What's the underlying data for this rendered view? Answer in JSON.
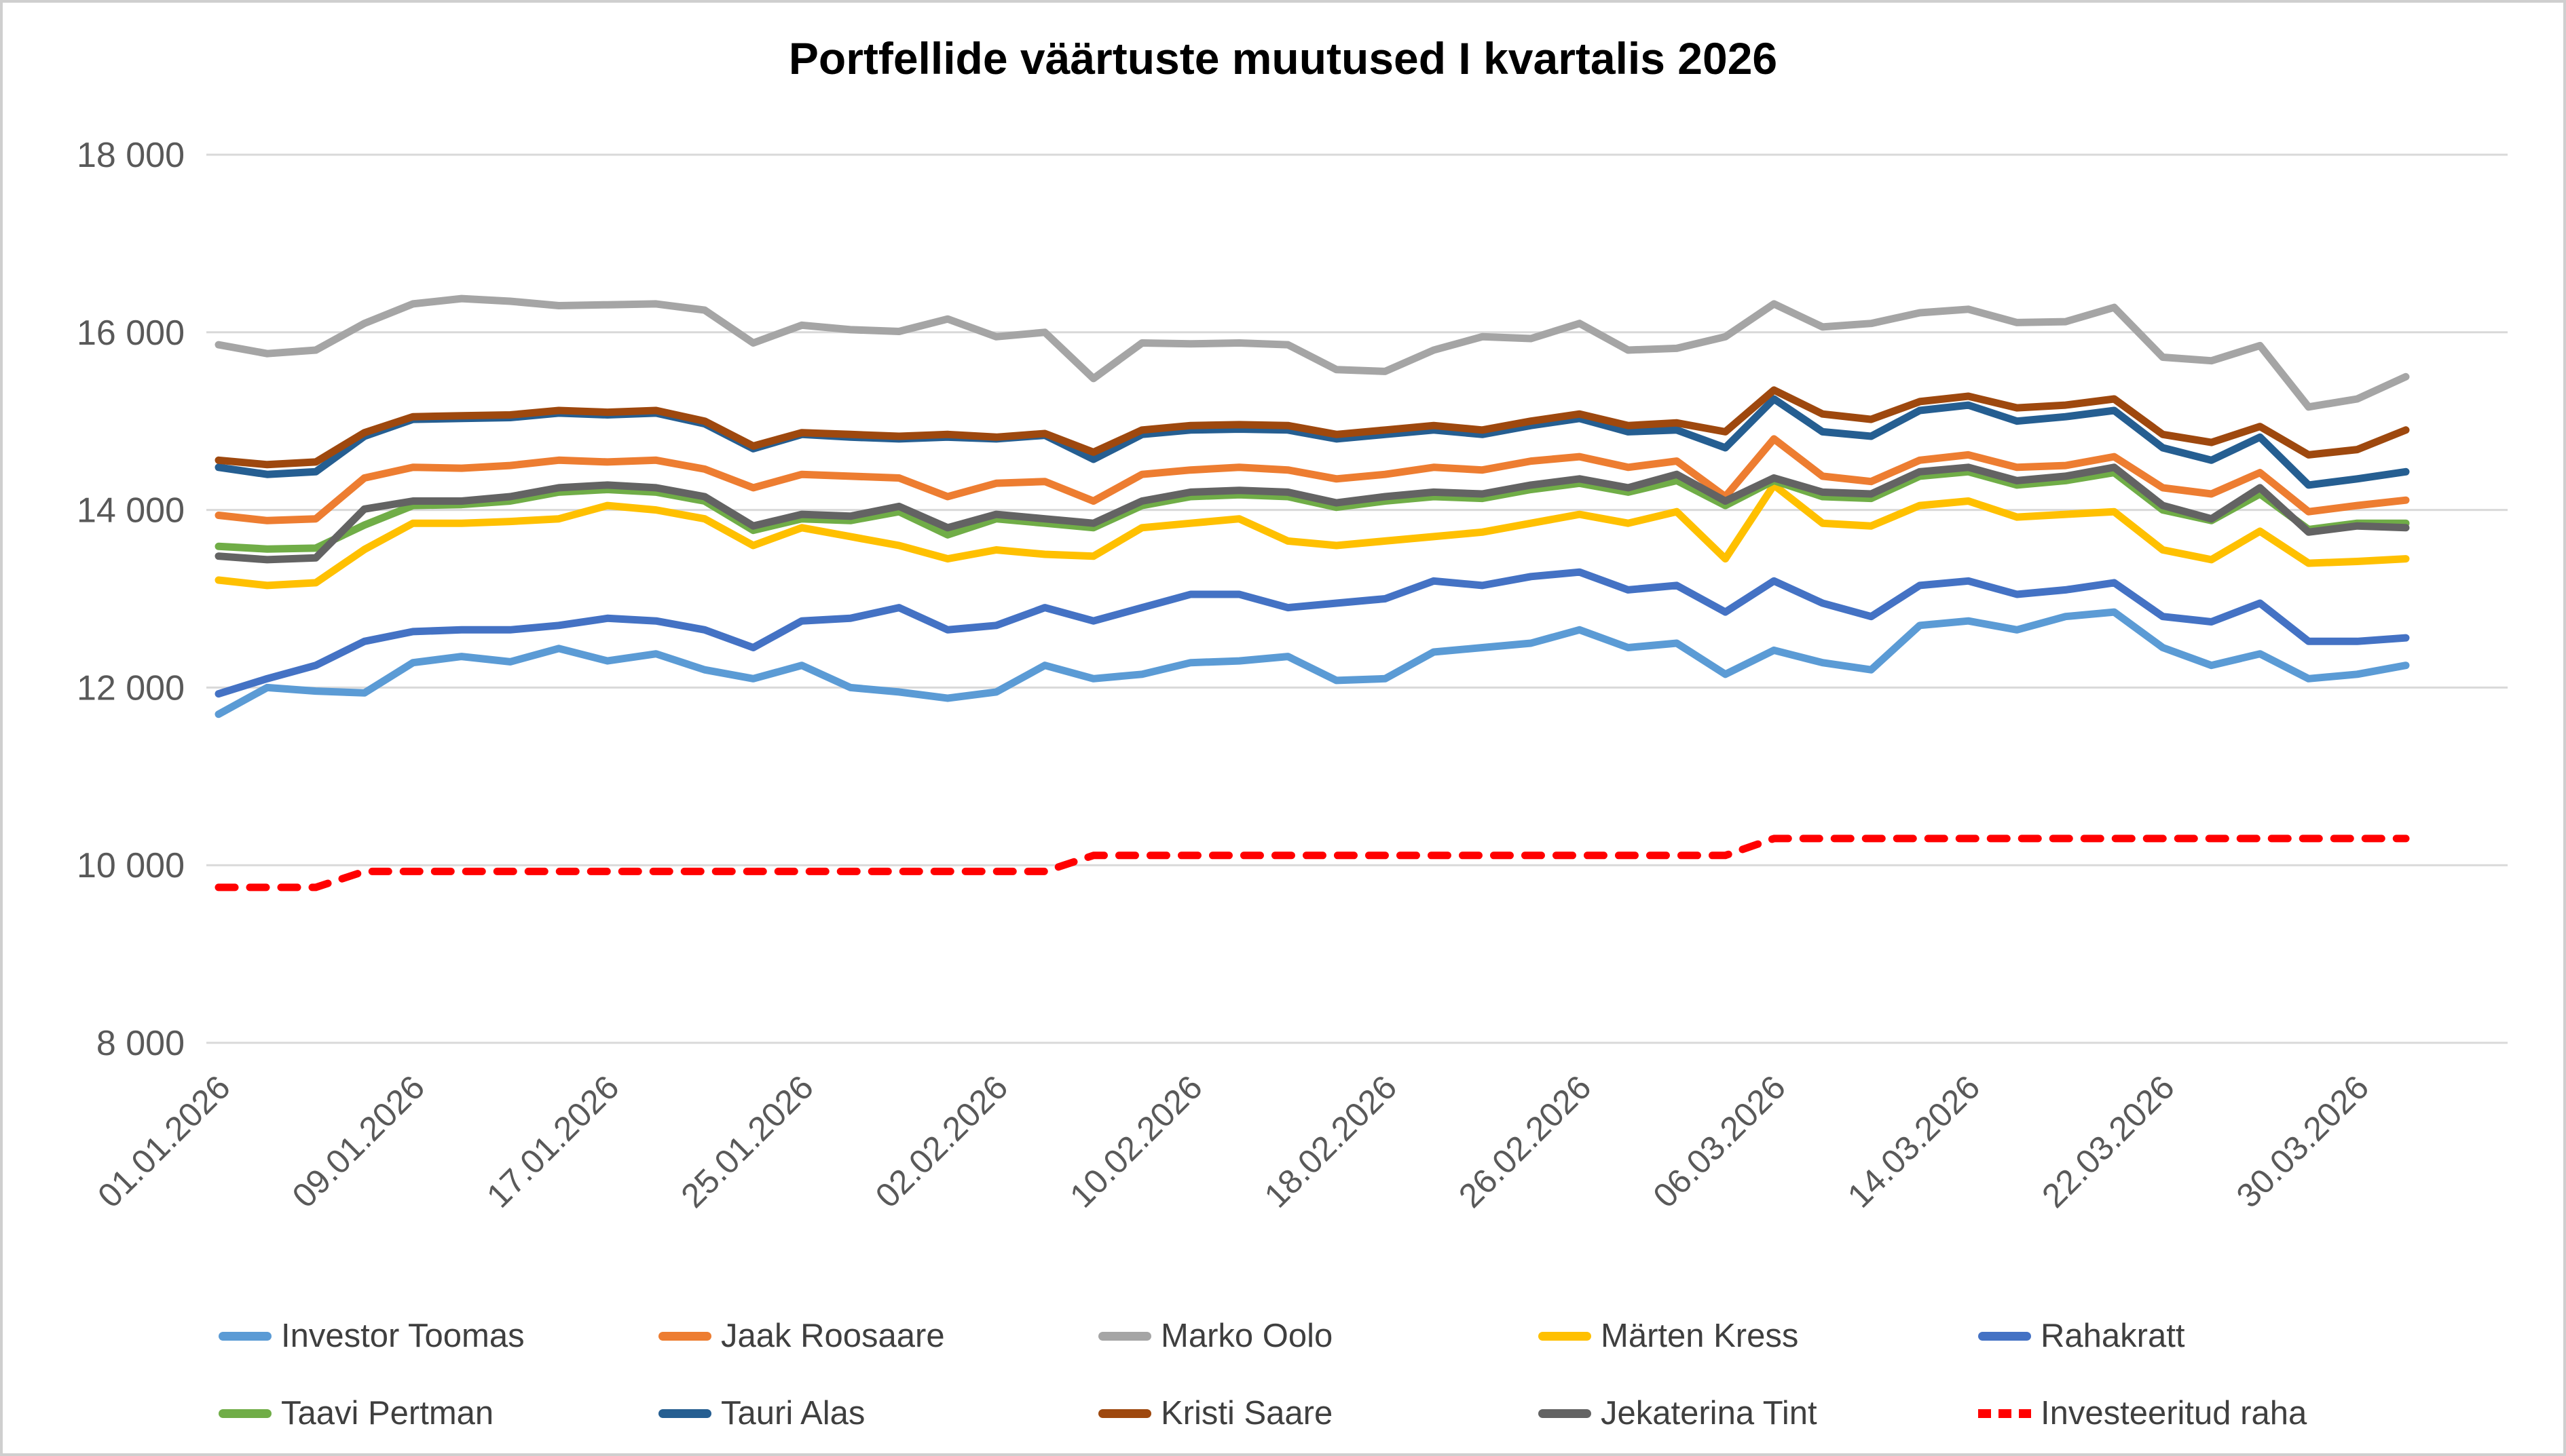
{
  "title": "Portfellide väärtuste muutused I kvartalis 2026",
  "chart_data": {
    "type": "line",
    "title": "Portfellide väärtuste muutused I kvartalis 2026",
    "xlabel": "",
    "ylabel": "",
    "ylim": [
      8000,
      18000
    ],
    "grid": "horizontal",
    "legend_position": "bottom",
    "y_ticks": [
      {
        "value": 8000,
        "label": "8 000"
      },
      {
        "value": 10000,
        "label": "10 000"
      },
      {
        "value": 12000,
        "label": "12 000"
      },
      {
        "value": 14000,
        "label": "14 000"
      },
      {
        "value": 16000,
        "label": "16 000"
      },
      {
        "value": 18000,
        "label": "18 000"
      }
    ],
    "x_labels": [
      "01.01.2026",
      "09.01.2026",
      "17.01.2026",
      "25.01.2026",
      "02.02.2026",
      "10.02.2026",
      "18.02.2026",
      "26.02.2026",
      "06.03.2026",
      "14.03.2026",
      "22.03.2026",
      "30.03.2026"
    ],
    "x_tick_indices": [
      0,
      4,
      8,
      12,
      16,
      20,
      24,
      28,
      32,
      36,
      40,
      44
    ],
    "series": [
      {
        "name": "Investor Toomas",
        "color": "#5B9BD5",
        "dashed": false,
        "values": [
          11700,
          12000,
          11960,
          11940,
          12280,
          12350,
          12290,
          12440,
          12300,
          12380,
          12200,
          12100,
          12250,
          12000,
          11950,
          11880,
          11950,
          12250,
          12100,
          12150,
          12280,
          12300,
          12350,
          12080,
          12100,
          12400,
          12450,
          12500,
          12650,
          12450,
          12500,
          12150,
          12420,
          12280,
          12200,
          12700,
          12750,
          12650,
          12800,
          12850,
          12450,
          12250,
          12380,
          12100,
          12150,
          12250
        ]
      },
      {
        "name": "Jaak Roosaare",
        "color": "#ED7D31",
        "dashed": false,
        "values": [
          13940,
          13880,
          13900,
          14360,
          14480,
          14470,
          14500,
          14560,
          14540,
          14560,
          14460,
          14250,
          14400,
          14380,
          14360,
          14150,
          14300,
          14320,
          14100,
          14400,
          14450,
          14480,
          14450,
          14350,
          14400,
          14480,
          14450,
          14550,
          14600,
          14480,
          14550,
          14150,
          14800,
          14380,
          14320,
          14560,
          14620,
          14480,
          14500,
          14600,
          14250,
          14180,
          14420,
          13980,
          14050,
          14110
        ]
      },
      {
        "name": "Marko Oolo",
        "color": "#A5A5A5",
        "dashed": false,
        "values": [
          15860,
          15760,
          15800,
          16100,
          16320,
          16380,
          16350,
          16300,
          16310,
          16320,
          16250,
          15880,
          16080,
          16030,
          16010,
          16150,
          15950,
          16000,
          15480,
          15880,
          15870,
          15880,
          15860,
          15580,
          15560,
          15800,
          15950,
          15930,
          16100,
          15800,
          15820,
          15950,
          16320,
          16060,
          16100,
          16220,
          16260,
          16110,
          16120,
          16280,
          15720,
          15680,
          15850,
          15160,
          15250,
          15500
        ]
      },
      {
        "name": "Märten Kress",
        "color": "#FFC000",
        "dashed": false,
        "values": [
          13210,
          13150,
          13180,
          13555,
          13850,
          13850,
          13870,
          13900,
          14050,
          14000,
          13900,
          13600,
          13800,
          13700,
          13600,
          13450,
          13550,
          13500,
          13480,
          13800,
          13850,
          13900,
          13650,
          13600,
          13650,
          13700,
          13750,
          13850,
          13950,
          13850,
          13980,
          13450,
          14280,
          13850,
          13820,
          14050,
          14100,
          13920,
          13950,
          13980,
          13550,
          13440,
          13760,
          13400,
          13420,
          13450
        ]
      },
      {
        "name": "Rahakratt",
        "color": "#4472C4",
        "dashed": false,
        "values": [
          11930,
          12100,
          12250,
          12520,
          12630,
          12650,
          12650,
          12700,
          12780,
          12750,
          12650,
          12450,
          12750,
          12780,
          12900,
          12650,
          12700,
          12900,
          12750,
          12900,
          13050,
          13050,
          12900,
          12950,
          13000,
          13200,
          13150,
          13250,
          13300,
          13100,
          13150,
          12850,
          13200,
          12950,
          12800,
          13150,
          13200,
          13050,
          13100,
          13180,
          12800,
          12740,
          12950,
          12520,
          12520,
          12560
        ]
      },
      {
        "name": "Taavi Pertman",
        "color": "#70AD47",
        "dashed": false,
        "values": [
          13590,
          13560,
          13570,
          13830,
          14050,
          14060,
          14100,
          14200,
          14230,
          14200,
          14100,
          13770,
          13900,
          13880,
          13980,
          13720,
          13900,
          13850,
          13800,
          14050,
          14150,
          14170,
          14150,
          14030,
          14100,
          14150,
          14130,
          14230,
          14300,
          14200,
          14330,
          14050,
          14330,
          14150,
          14130,
          14380,
          14430,
          14280,
          14330,
          14420,
          14000,
          13880,
          14180,
          13780,
          13850,
          13850
        ]
      },
      {
        "name": "Tauri Alas",
        "color": "#255E91",
        "dashed": false,
        "values": [
          14480,
          14400,
          14430,
          14830,
          15020,
          15030,
          15040,
          15090,
          15070,
          15090,
          14970,
          14690,
          14850,
          14820,
          14800,
          14820,
          14800,
          14840,
          14570,
          14850,
          14900,
          14910,
          14900,
          14800,
          14850,
          14900,
          14850,
          14950,
          15030,
          14880,
          14900,
          14700,
          15250,
          14880,
          14830,
          15120,
          15180,
          15000,
          15050,
          15120,
          14700,
          14560,
          14820,
          14280,
          14350,
          14430
        ]
      },
      {
        "name": "Kristi Saare",
        "color": "#9E480E",
        "dashed": false,
        "values": [
          14560,
          14510,
          14540,
          14870,
          15050,
          15060,
          15070,
          15120,
          15100,
          15120,
          15000,
          14720,
          14870,
          14850,
          14830,
          14850,
          14820,
          14860,
          14650,
          14900,
          14950,
          14960,
          14950,
          14850,
          14900,
          14950,
          14900,
          15000,
          15080,
          14950,
          14980,
          14880,
          15350,
          15080,
          15020,
          15220,
          15280,
          15150,
          15180,
          15250,
          14850,
          14760,
          14940,
          14620,
          14680,
          14900
        ]
      },
      {
        "name": "Jekaterina Tint",
        "color": "#636363",
        "dashed": false,
        "values": [
          13480,
          13440,
          13460,
          14010,
          14100,
          14100,
          14150,
          14250,
          14280,
          14250,
          14150,
          13820,
          13950,
          13930,
          14040,
          13800,
          13950,
          13900,
          13850,
          14100,
          14200,
          14220,
          14200,
          14080,
          14150,
          14200,
          14180,
          14280,
          14350,
          14250,
          14400,
          14100,
          14360,
          14200,
          14180,
          14430,
          14480,
          14330,
          14380,
          14480,
          14050,
          13900,
          14250,
          13750,
          13820,
          13800
        ]
      },
      {
        "name": "Investeeritud raha",
        "color": "#FF0000",
        "dashed": true,
        "values": [
          9750,
          9750,
          9750,
          9930,
          9930,
          9930,
          9930,
          9930,
          9930,
          9930,
          9930,
          9930,
          9930,
          9930,
          9930,
          9930,
          9930,
          9930,
          10110,
          10110,
          10110,
          10110,
          10110,
          10110,
          10110,
          10110,
          10110,
          10110,
          10110,
          10110,
          10110,
          10110,
          10300,
          10300,
          10300,
          10300,
          10300,
          10300,
          10300,
          10300,
          10300,
          10300,
          10300,
          10300,
          10300,
          10300
        ]
      }
    ]
  },
  "colors": {
    "grid": "#D9D9D9",
    "axis_text": "#595959",
    "legend_text": "#3F3F3F",
    "border": "#CFCFCF"
  },
  "legend_rows": [
    [
      "Investor Toomas",
      "Jaak Roosaare",
      "Marko Oolo",
      "Märten Kress",
      "Rahakratt"
    ],
    [
      "Taavi Pertman",
      "Tauri Alas",
      "Kristi Saare",
      "Jekaterina Tint",
      "Investeeritud raha"
    ]
  ]
}
